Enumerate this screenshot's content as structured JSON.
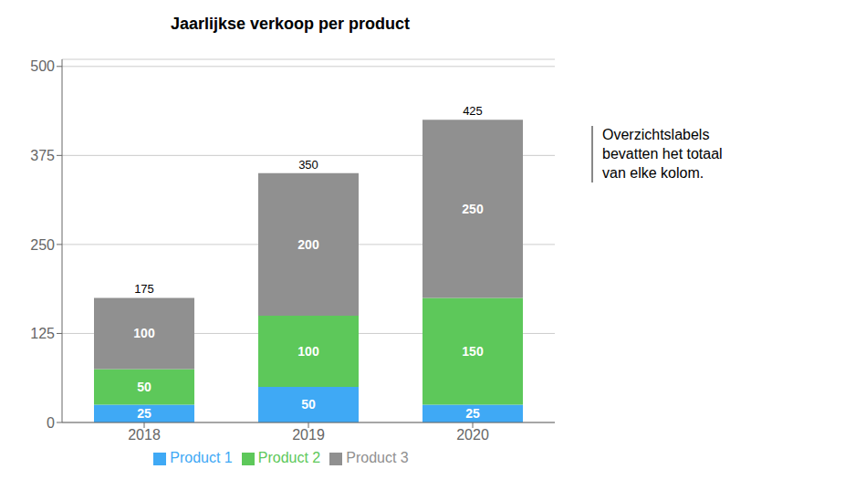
{
  "chart_data": {
    "type": "bar",
    "title": "Jaarlijkse verkoop per product",
    "categories": [
      "2018",
      "2019",
      "2020"
    ],
    "series": [
      {
        "name": "Product 1",
        "color": "#3FA9F5",
        "values": [
          25,
          50,
          25
        ]
      },
      {
        "name": "Product 2",
        "color": "#5DC85A",
        "values": [
          50,
          100,
          150
        ]
      },
      {
        "name": "Product 3",
        "color": "#909090",
        "values": [
          100,
          200,
          250
        ]
      }
    ],
    "totals": [
      175,
      350,
      425
    ],
    "stacked": true,
    "data_labels": true,
    "ylim": [
      0,
      510
    ],
    "yticks": [
      0,
      125,
      250,
      375,
      500
    ],
    "grid": true,
    "legend": "bottom",
    "annotation": "Overzichtslabels\nbevatten het totaal\nvan elke kolom."
  }
}
